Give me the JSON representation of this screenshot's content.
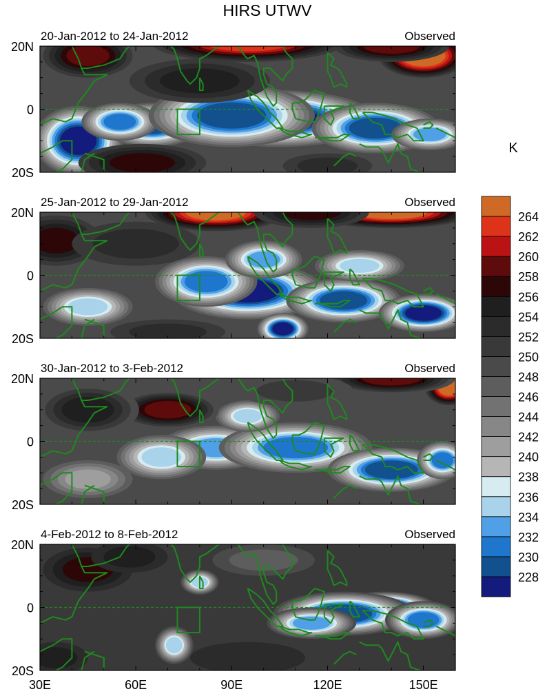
{
  "figure": {
    "title": "HIRS UTWV",
    "colorbar_unit": "K"
  },
  "chart_data": {
    "type": "heatmap",
    "title": "HIRS UTWV",
    "x_axis": {
      "range": [
        30,
        160
      ],
      "ticks": [
        30,
        60,
        90,
        120,
        150
      ],
      "tick_labels": [
        "30E",
        "60E",
        "90E",
        "120E",
        "150E"
      ]
    },
    "y_axis": {
      "range": [
        -20,
        20
      ],
      "ticks": [
        20,
        0,
        -20
      ],
      "tick_labels": [
        "20N",
        "0",
        "20S"
      ]
    },
    "units": "K",
    "reference_line": {
      "lat": 0,
      "style": "dashed"
    },
    "box_region": {
      "lon": [
        73,
        80
      ],
      "lat": [
        -8,
        0
      ]
    },
    "colorbar": {
      "levels": [
        "228",
        "230",
        "232",
        "234",
        "236",
        "238",
        "240",
        "242",
        "244",
        "246",
        "248",
        "250",
        "252",
        "254",
        "256",
        "258",
        "260",
        "262",
        "264"
      ],
      "colors": [
        "#131c7c",
        "#13508e",
        "#1f76cd",
        "#4fa0e6",
        "#a9d3ea",
        "#d6ecf1",
        "#b6b6b6",
        "#9e9e9e",
        "#878787",
        "#727272",
        "#5d5d5d",
        "#4a4a4a",
        "#393939",
        "#2b2b2b",
        "#1f1f1f",
        "#2d0707",
        "#5e0b0b",
        "#bb1313",
        "#dd3318",
        "#ce6a26"
      ]
    },
    "panels": [
      {
        "date_range": "20-Jan-2012 to 24-Jan-2012",
        "label": "Observed",
        "base_value": 249,
        "features": [
          {
            "lon": 42,
            "lat": -10,
            "value": 228,
            "rlon": 14,
            "rlat": 11
          },
          {
            "lon": 65,
            "lat": -5,
            "value": 230,
            "rlon": 16,
            "rlat": 7
          },
          {
            "lon": 55,
            "lat": -4,
            "value": 232,
            "rlon": 12,
            "rlat": 6
          },
          {
            "lon": 105,
            "lat": -3,
            "value": 227,
            "rlon": 30,
            "rlat": 9
          },
          {
            "lon": 90,
            "lat": -2,
            "value": 230,
            "rlon": 26,
            "rlat": 10
          },
          {
            "lon": 135,
            "lat": -6,
            "value": 229,
            "rlon": 20,
            "rlat": 8
          },
          {
            "lon": 152,
            "lat": -8,
            "value": 234,
            "rlon": 12,
            "rlat": 5
          },
          {
            "lon": 150,
            "lat": 17,
            "value": 266,
            "rlon": 14,
            "rlat": 7
          },
          {
            "lon": 95,
            "lat": 21,
            "value": 262,
            "rlon": 30,
            "rlat": 6
          },
          {
            "lon": 140,
            "lat": 20,
            "value": 259,
            "rlon": 18,
            "rlat": 5
          },
          {
            "lon": 45,
            "lat": 17,
            "value": 259,
            "rlon": 14,
            "rlat": 7
          },
          {
            "lon": 80,
            "lat": 9,
            "value": 254,
            "rlon": 22,
            "rlat": 7
          },
          {
            "lon": 62,
            "lat": -17,
            "value": 257,
            "rlon": 20,
            "rlat": 6
          },
          {
            "lon": 120,
            "lat": -18,
            "value": 252,
            "rlon": 14,
            "rlat": 4
          }
        ]
      },
      {
        "date_range": "25-Jan-2012 to 29-Jan-2012",
        "label": "Observed",
        "base_value": 249,
        "features": [
          {
            "lon": 95,
            "lat": -5,
            "value": 228,
            "rlon": 24,
            "rlat": 9
          },
          {
            "lon": 106,
            "lat": -17,
            "value": 227,
            "rlon": 8,
            "rlat": 5
          },
          {
            "lon": 125,
            "lat": -8,
            "value": 229,
            "rlon": 18,
            "rlat": 7
          },
          {
            "lon": 150,
            "lat": -12,
            "value": 228,
            "rlon": 14,
            "rlat": 6
          },
          {
            "lon": 82,
            "lat": -2,
            "value": 232,
            "rlon": 16,
            "rlat": 8
          },
          {
            "lon": 45,
            "lat": -10,
            "value": 235,
            "rlon": 14,
            "rlat": 6
          },
          {
            "lon": 100,
            "lat": 5,
            "value": 234,
            "rlon": 12,
            "rlat": 6
          },
          {
            "lon": 130,
            "lat": 3,
            "value": 235,
            "rlon": 14,
            "rlat": 5
          },
          {
            "lon": 85,
            "lat": 20,
            "value": 264,
            "rlon": 22,
            "rlat": 6
          },
          {
            "lon": 140,
            "lat": 20,
            "value": 264,
            "rlon": 26,
            "rlat": 5
          },
          {
            "lon": 115,
            "lat": 20,
            "value": 257,
            "rlon": 18,
            "rlat": 5
          },
          {
            "lon": 35,
            "lat": 11,
            "value": 256,
            "rlon": 14,
            "rlat": 8
          },
          {
            "lon": 60,
            "lat": 10,
            "value": 253,
            "rlon": 20,
            "rlat": 7
          },
          {
            "lon": 70,
            "lat": -18,
            "value": 252,
            "rlon": 18,
            "rlat": 4
          }
        ]
      },
      {
        "date_range": "30-Jan-2012 to 3-Feb-2012",
        "label": "Observed",
        "base_value": 248,
        "features": [
          {
            "lon": 85,
            "lat": -2,
            "value": 232,
            "rlon": 18,
            "rlat": 7
          },
          {
            "lon": 110,
            "lat": -2,
            "value": 230,
            "rlon": 24,
            "rlat": 8
          },
          {
            "lon": 140,
            "lat": -9,
            "value": 229,
            "rlon": 20,
            "rlat": 7
          },
          {
            "lon": 156,
            "lat": -6,
            "value": 230,
            "rlon": 8,
            "rlat": 6
          },
          {
            "lon": 68,
            "lat": -5,
            "value": 235,
            "rlon": 14,
            "rlat": 7
          },
          {
            "lon": 95,
            "lat": 8,
            "value": 234,
            "rlon": 10,
            "rlat": 5
          },
          {
            "lon": 45,
            "lat": -12,
            "value": 240,
            "rlon": 14,
            "rlat": 6
          },
          {
            "lon": 158,
            "lat": 17,
            "value": 266,
            "rlon": 8,
            "rlat": 6
          },
          {
            "lon": 140,
            "lat": 20,
            "value": 259,
            "rlon": 20,
            "rlat": 5
          },
          {
            "lon": 70,
            "lat": 10,
            "value": 259,
            "rlon": 16,
            "rlat": 6
          },
          {
            "lon": 45,
            "lat": 10,
            "value": 255,
            "rlon": 16,
            "rlat": 8
          },
          {
            "lon": 110,
            "lat": 16,
            "value": 252,
            "rlon": 18,
            "rlat": 5
          }
        ]
      },
      {
        "date_range": "4-Feb-2012 to 8-Feb-2012",
        "label": "Observed",
        "base_value": 251,
        "features": [
          {
            "lon": 138,
            "lat": 0,
            "value": 228,
            "rlon": 16,
            "rlat": 5
          },
          {
            "lon": 125,
            "lat": -2,
            "value": 230,
            "rlon": 22,
            "rlat": 7
          },
          {
            "lon": 150,
            "lat": -4,
            "value": 232,
            "rlon": 12,
            "rlat": 6
          },
          {
            "lon": 115,
            "lat": -5,
            "value": 234,
            "rlon": 14,
            "rlat": 5
          },
          {
            "lon": 80,
            "lat": 8,
            "value": 236,
            "rlon": 6,
            "rlat": 4
          },
          {
            "lon": 72,
            "lat": -12,
            "value": 236,
            "rlon": 6,
            "rlat": 6
          },
          {
            "lon": 45,
            "lat": 12,
            "value": 257,
            "rlon": 14,
            "rlat": 7
          },
          {
            "lon": 58,
            "lat": 16,
            "value": 255,
            "rlon": 12,
            "rlat": 5
          },
          {
            "lon": 35,
            "lat": -16,
            "value": 254,
            "rlon": 10,
            "rlat": 5
          },
          {
            "lon": 100,
            "lat": 15,
            "value": 248,
            "rlon": 16,
            "rlat": 5
          },
          {
            "lon": 95,
            "lat": -16,
            "value": 253,
            "rlon": 18,
            "rlat": 5
          }
        ]
      }
    ]
  }
}
